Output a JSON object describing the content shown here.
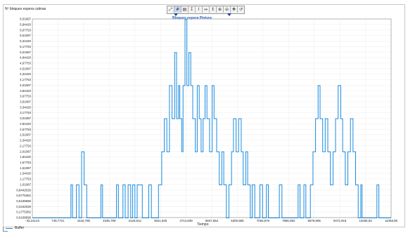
{
  "chart_data": {
    "type": "line",
    "ylabel": "Nº bloques espera calmas",
    "xlabel": "Tiempo",
    "series_title": "Bloques espera Pintura",
    "legend": [
      "Buffer"
    ],
    "yticks": [
      "6,01667",
      "5,84420",
      "5,67753",
      "5,51087",
      "5,34420",
      "5,17753",
      "5,01087",
      "4,84420",
      "4,67753",
      "4,51087",
      "4,34420",
      "4,17753",
      "4,01087",
      "3,84420",
      "3,67753",
      "3,51087",
      "3,34420",
      "3,17753",
      "3,01087",
      "2,84420",
      "2,67753",
      "2,51087",
      "2,34420",
      "2,17753",
      "2,01087",
      "1,84420",
      "1,67753",
      "1,51087",
      "1,34420",
      "1,17753",
      "1,01087",
      "0,8442029",
      "0,6775362",
      "0,5108696",
      "0,3442029",
      "0,1775362",
      "0,0108696"
    ],
    "xticks": [
      "-43,24123",
      "749,7721",
      "1542,785",
      "2335,799",
      "3128,812",
      "3921,825",
      "4714,839",
      "5507,852",
      "6300,865",
      "7093,879",
      "7886,892",
      "8679,905",
      "9472,918",
      "10265,93",
      "11058,95"
    ],
    "xlim": [
      -43.24123,
      11058.95
    ],
    "ylim": [
      0.0108696,
      6.01667
    ],
    "series": [
      {
        "name": "Buffer",
        "color": "#1a8ce0",
        "points": [
          [
            -43,
            0
          ],
          [
            1150,
            0
          ],
          [
            1150,
            1
          ],
          [
            1200,
            1
          ],
          [
            1200,
            0
          ],
          [
            1320,
            0
          ],
          [
            1320,
            1
          ],
          [
            1400,
            1
          ],
          [
            1400,
            0
          ],
          [
            1480,
            0
          ],
          [
            1480,
            2
          ],
          [
            1560,
            2
          ],
          [
            1560,
            1
          ],
          [
            1640,
            1
          ],
          [
            1640,
            0
          ],
          [
            2080,
            0
          ],
          [
            2080,
            1
          ],
          [
            2130,
            1
          ],
          [
            2130,
            0
          ],
          [
            2560,
            0
          ],
          [
            2560,
            1
          ],
          [
            2620,
            1
          ],
          [
            2620,
            0
          ],
          [
            2760,
            0
          ],
          [
            2760,
            1
          ],
          [
            2830,
            1
          ],
          [
            2830,
            0
          ],
          [
            2920,
            0
          ],
          [
            2920,
            1
          ],
          [
            3000,
            1
          ],
          [
            3000,
            0
          ],
          [
            3060,
            0
          ],
          [
            3060,
            1
          ],
          [
            3130,
            1
          ],
          [
            3130,
            0
          ],
          [
            3200,
            0
          ],
          [
            3200,
            1
          ],
          [
            3360,
            1
          ],
          [
            3360,
            0
          ],
          [
            3560,
            0
          ],
          [
            3560,
            1
          ],
          [
            3640,
            1
          ],
          [
            3640,
            0
          ],
          [
            3860,
            0
          ],
          [
            3860,
            1
          ],
          [
            3960,
            1
          ],
          [
            3960,
            2
          ],
          [
            4040,
            2
          ],
          [
            4040,
            3
          ],
          [
            4120,
            3
          ],
          [
            4120,
            2
          ],
          [
            4200,
            2
          ],
          [
            4200,
            4
          ],
          [
            4280,
            4
          ],
          [
            4280,
            3
          ],
          [
            4360,
            3
          ],
          [
            4360,
            5
          ],
          [
            4420,
            5
          ],
          [
            4420,
            3
          ],
          [
            4480,
            3
          ],
          [
            4480,
            4
          ],
          [
            4520,
            4
          ],
          [
            4520,
            3
          ],
          [
            4580,
            3
          ],
          [
            4580,
            2
          ],
          [
            4620,
            2
          ],
          [
            4620,
            4
          ],
          [
            4680,
            4
          ],
          [
            4680,
            6
          ],
          [
            4740,
            6
          ],
          [
            4740,
            4
          ],
          [
            4800,
            4
          ],
          [
            4800,
            5
          ],
          [
            4860,
            5
          ],
          [
            4860,
            4
          ],
          [
            4920,
            4
          ],
          [
            4920,
            3
          ],
          [
            5000,
            3
          ],
          [
            5000,
            2
          ],
          [
            5060,
            2
          ],
          [
            5060,
            4
          ],
          [
            5120,
            4
          ],
          [
            5120,
            3
          ],
          [
            5180,
            3
          ],
          [
            5180,
            2
          ],
          [
            5240,
            2
          ],
          [
            5240,
            3
          ],
          [
            5300,
            3
          ],
          [
            5300,
            4
          ],
          [
            5360,
            4
          ],
          [
            5360,
            3
          ],
          [
            5440,
            3
          ],
          [
            5440,
            2
          ],
          [
            5520,
            2
          ],
          [
            5520,
            4
          ],
          [
            5580,
            4
          ],
          [
            5580,
            3
          ],
          [
            5660,
            3
          ],
          [
            5660,
            2
          ],
          [
            5740,
            2
          ],
          [
            5740,
            1
          ],
          [
            5820,
            1
          ],
          [
            5820,
            2
          ],
          [
            5880,
            2
          ],
          [
            5880,
            1
          ],
          [
            5960,
            1
          ],
          [
            5960,
            0
          ],
          [
            6040,
            0
          ],
          [
            6040,
            1
          ],
          [
            6120,
            1
          ],
          [
            6120,
            2
          ],
          [
            6180,
            2
          ],
          [
            6180,
            3
          ],
          [
            6260,
            3
          ],
          [
            6260,
            2
          ],
          [
            6340,
            2
          ],
          [
            6340,
            3
          ],
          [
            6420,
            3
          ],
          [
            6420,
            2
          ],
          [
            6480,
            2
          ],
          [
            6480,
            1
          ],
          [
            6560,
            1
          ],
          [
            6560,
            2
          ],
          [
            6620,
            2
          ],
          [
            6620,
            1
          ],
          [
            6700,
            1
          ],
          [
            6700,
            0
          ],
          [
            6760,
            0
          ],
          [
            6760,
            1
          ],
          [
            6840,
            1
          ],
          [
            6840,
            0
          ],
          [
            7000,
            0
          ],
          [
            7000,
            1
          ],
          [
            7080,
            1
          ],
          [
            7080,
            0
          ],
          [
            7200,
            0
          ],
          [
            7200,
            1
          ],
          [
            7260,
            1
          ],
          [
            7260,
            0
          ],
          [
            7600,
            0
          ],
          [
            7600,
            1
          ],
          [
            7680,
            1
          ],
          [
            7680,
            0
          ],
          [
            8180,
            0
          ],
          [
            8180,
            1
          ],
          [
            8240,
            1
          ],
          [
            8240,
            0
          ],
          [
            8360,
            0
          ],
          [
            8360,
            1
          ],
          [
            8420,
            1
          ],
          [
            8420,
            0
          ],
          [
            8560,
            0
          ],
          [
            8560,
            1
          ],
          [
            8640,
            1
          ],
          [
            8640,
            2
          ],
          [
            8720,
            2
          ],
          [
            8720,
            3
          ],
          [
            8800,
            3
          ],
          [
            8800,
            4
          ],
          [
            8860,
            4
          ],
          [
            8860,
            3
          ],
          [
            8940,
            3
          ],
          [
            8940,
            2
          ],
          [
            9020,
            2
          ],
          [
            9020,
            3
          ],
          [
            9100,
            3
          ],
          [
            9100,
            2
          ],
          [
            9180,
            2
          ],
          [
            9180,
            1
          ],
          [
            9260,
            1
          ],
          [
            9260,
            2
          ],
          [
            9340,
            2
          ],
          [
            9340,
            3
          ],
          [
            9420,
            3
          ],
          [
            9420,
            4
          ],
          [
            9500,
            4
          ],
          [
            9500,
            3
          ],
          [
            9560,
            3
          ],
          [
            9560,
            2
          ],
          [
            9640,
            2
          ],
          [
            9640,
            1
          ],
          [
            9720,
            1
          ],
          [
            9720,
            2
          ],
          [
            9800,
            2
          ],
          [
            9800,
            3
          ],
          [
            9880,
            3
          ],
          [
            9880,
            2
          ],
          [
            9960,
            2
          ],
          [
            9960,
            1
          ],
          [
            10040,
            1
          ],
          [
            10040,
            0
          ],
          [
            10120,
            0
          ],
          [
            10120,
            1
          ],
          [
            10160,
            1
          ],
          [
            10160,
            0
          ],
          [
            10620,
            0
          ],
          [
            10620,
            1
          ],
          [
            10680,
            1
          ],
          [
            10680,
            0
          ],
          [
            11059,
            0
          ]
        ]
      }
    ]
  },
  "toolbar": [
    {
      "name": "zoom-fit-button",
      "glyph": "⤢",
      "active": false
    },
    {
      "name": "grid-button",
      "glyph": "#",
      "active": true
    },
    {
      "name": "table-button",
      "glyph": "▤",
      "active": false
    },
    {
      "name": "marker-button",
      "glyph": "↧",
      "active": false
    },
    {
      "name": "line-button",
      "glyph": "⌇",
      "active": false
    },
    {
      "name": "zoom-x-button",
      "glyph": "↔",
      "active": false
    },
    {
      "name": "zoom-y-button",
      "glyph": "↕",
      "active": false
    },
    {
      "name": "zoom-in-button",
      "glyph": "⊕",
      "active": false
    },
    {
      "name": "zoom-out-button",
      "glyph": "⊖",
      "active": false
    },
    {
      "name": "pan-button",
      "glyph": "✥",
      "active": false
    },
    {
      "name": "reset-button",
      "glyph": "↺",
      "active": false
    }
  ]
}
